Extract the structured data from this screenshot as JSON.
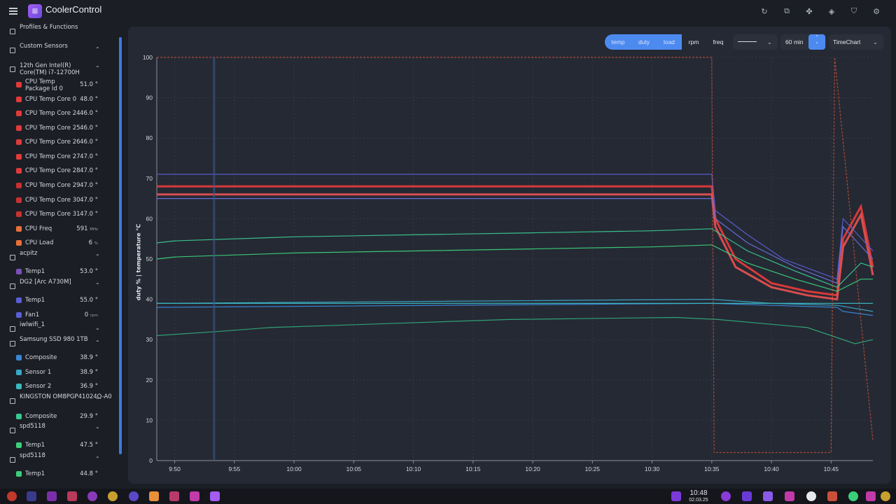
{
  "app": {
    "title": "CoolerControl",
    "logo_icon": "coolercontrol-logo"
  },
  "header_icons": [
    "refresh-icon",
    "open-external-icon",
    "fan-icon",
    "layers-icon",
    "shield-icon",
    "settings-icon"
  ],
  "sidebar": {
    "groups": [
      {
        "label": "Profiles & Functions",
        "y": 45,
        "chevron": ""
      },
      {
        "label": "Custom Sensors",
        "y": 72,
        "chevron": "up"
      },
      {
        "label": "12th Gen Intel(R) Core(TM) i7-12700H",
        "y": 99,
        "chevron": "up"
      },
      {
        "label": "acpitz",
        "y": 368,
        "chevron": "up"
      },
      {
        "label": "DG2 [Arc A730M]",
        "y": 409,
        "chevron": "up"
      },
      {
        "label": "iwlwifi_1",
        "y": 470,
        "chevron": "down"
      },
      {
        "label": "Samsung SSD 980 1TB",
        "y": 491,
        "chevron": "up"
      },
      {
        "label": "KINGSTON OM8PGP41024Q-A0",
        "y": 573,
        "chevron": "up"
      },
      {
        "label": "spd5118",
        "y": 615,
        "chevron": "up"
      },
      {
        "label": "spd5118",
        "y": 657,
        "chevron": "up"
      }
    ],
    "sensors": [
      {
        "label": "CPU Temp Package Id 0",
        "value": "51.0",
        "unit": "°",
        "color": "#e03a3a",
        "y": 121
      },
      {
        "label": "CPU Temp Core 0",
        "value": "48.0",
        "unit": "°",
        "color": "#e03a3a",
        "y": 142
      },
      {
        "label": "CPU Temp Core 24",
        "value": "46.0",
        "unit": "°",
        "color": "#e03a3a",
        "y": 162
      },
      {
        "label": "CPU Temp Core 25",
        "value": "46.0",
        "unit": "°",
        "color": "#e03a3a",
        "y": 183
      },
      {
        "label": "CPU Temp Core 26",
        "value": "46.0",
        "unit": "°",
        "color": "#e03a3a",
        "y": 203
      },
      {
        "label": "CPU Temp Core 27",
        "value": "47.0",
        "unit": "°",
        "color": "#e03a3a",
        "y": 224
      },
      {
        "label": "CPU Temp Core 28",
        "value": "47.0",
        "unit": "°",
        "color": "#e03a3a",
        "y": 244
      },
      {
        "label": "CPU Temp Core 29",
        "value": "47.0",
        "unit": "°",
        "color": "#c93030",
        "y": 265
      },
      {
        "label": "CPU Temp Core 30",
        "value": "47.0",
        "unit": "°",
        "color": "#c93030",
        "y": 286
      },
      {
        "label": "CPU Temp Core 31",
        "value": "47.0",
        "unit": "°",
        "color": "#c93030",
        "y": 306
      },
      {
        "label": "CPU Freq",
        "value": "591",
        "unit": "MHz",
        "color": "#e8703a",
        "y": 327
      },
      {
        "label": "CPU Load",
        "value": "6",
        "unit": "%",
        "color": "#e8703a",
        "y": 347
      },
      {
        "label": "Temp1",
        "value": "53.0",
        "unit": "°",
        "color": "#7a4fb8",
        "y": 388
      },
      {
        "label": "Temp1",
        "value": "55.0",
        "unit": "°",
        "color": "#5a5fd6",
        "y": 429
      },
      {
        "label": "Fan1",
        "value": "0",
        "unit": "rpm",
        "color": "#5a5fd6",
        "y": 450
      },
      {
        "label": "Composite",
        "value": "38.9",
        "unit": "°",
        "color": "#3a86d8",
        "y": 511
      },
      {
        "label": "Sensor 1",
        "value": "38.9",
        "unit": "°",
        "color": "#3aa8c8",
        "y": 532
      },
      {
        "label": "Sensor 2",
        "value": "36.9",
        "unit": "°",
        "color": "#3ab8c0",
        "y": 552
      },
      {
        "label": "Composite",
        "value": "29.9",
        "unit": "°",
        "color": "#3ac890",
        "y": 595
      },
      {
        "label": "Temp1",
        "value": "47.5",
        "unit": "°",
        "color": "#3ad07a",
        "y": 636
      },
      {
        "label": "Temp1",
        "value": "44.8",
        "unit": "°",
        "color": "#3ad07a",
        "y": 677
      }
    ]
  },
  "toolbar": {
    "filters": [
      "temp",
      "duty",
      "load",
      "rpm",
      "freq"
    ],
    "time_range": "60 min",
    "chart_type": "TimeChart"
  },
  "chart_data": {
    "type": "line",
    "ylabel": "duty %  |  temperature °C",
    "ylim": [
      0,
      100
    ],
    "yticks": [
      0,
      10,
      20,
      30,
      40,
      50,
      60,
      70,
      80,
      90,
      100
    ],
    "xticks": [
      "9:50",
      "9:55",
      "10:00",
      "10:05",
      "10:10",
      "10:15",
      "10:20",
      "10:25",
      "10:30",
      "10:35",
      "10:40",
      "10:45"
    ],
    "xlim_minutes": [
      -1.5,
      58.5
    ],
    "series": [
      {
        "color": "#e03a3a",
        "x": [
          -1.5,
          45,
          45.3,
          47,
          50,
          53,
          55.5,
          56,
          57.5,
          58.5
        ],
        "values": [
          68,
          68,
          60,
          50,
          44,
          42,
          41,
          55,
          63,
          48
        ]
      },
      {
        "color": "#e05050",
        "x": [
          -1.5,
          45,
          45.3,
          47,
          50,
          53,
          55.5,
          56,
          57.5,
          58.5
        ],
        "values": [
          66,
          66,
          58,
          48,
          43,
          41,
          40,
          53,
          61,
          46
        ]
      },
      {
        "color": "#5a5fd6",
        "x": [
          -1.5,
          45,
          45.3,
          48,
          51,
          55.5,
          56,
          58.5
        ],
        "values": [
          71,
          71,
          62,
          56,
          50,
          45,
          60,
          52
        ]
      },
      {
        "color": "#6a70e0",
        "x": [
          -1.5,
          45,
          45.3,
          48,
          52,
          55.5,
          56,
          58.5
        ],
        "values": [
          65,
          65,
          60,
          54,
          48,
          44,
          58,
          50
        ]
      },
      {
        "color": "#3ac890",
        "x": [
          -1.5,
          0,
          10,
          20,
          30,
          40,
          45,
          48,
          52,
          55.5,
          57.5,
          58.5
        ],
        "values": [
          54,
          54.5,
          55.5,
          56,
          56.5,
          57,
          57.5,
          52,
          47,
          43,
          49,
          48
        ]
      },
      {
        "color": "#3ad07a",
        "x": [
          -1.5,
          0,
          10,
          20,
          30,
          40,
          45,
          48,
          52,
          55.5,
          57.5,
          58.5
        ],
        "values": [
          50,
          50.5,
          51.5,
          52,
          52.5,
          53,
          53.5,
          49,
          45,
          42,
          45,
          45
        ]
      },
      {
        "color": "#3a86d8",
        "x": [
          -1.5,
          45,
          50,
          55.5,
          56,
          58.5
        ],
        "values": [
          38,
          39,
          38.5,
          38,
          37,
          36
        ]
      },
      {
        "color": "#3aa8c8",
        "x": [
          -1.5,
          45,
          50,
          55.5,
          58.5
        ],
        "values": [
          39,
          40,
          39,
          38.5,
          37
        ]
      },
      {
        "color": "#3ab8c0",
        "x": [
          -1.5,
          45,
          55.5,
          58.5
        ],
        "values": [
          39,
          39,
          39,
          39
        ]
      },
      {
        "color": "#2fa878",
        "x": [
          -1.5,
          3.5,
          8,
          18,
          28,
          42,
          45.5,
          53,
          57,
          58.5
        ],
        "values": [
          31,
          32,
          33,
          34,
          35,
          35.5,
          35,
          33,
          29,
          30
        ]
      },
      {
        "color": "#e05a3a",
        "x": [
          -1.5,
          45,
          45.2,
          55,
          55.3,
          58.5
        ],
        "values": [
          100,
          100,
          2,
          2,
          100,
          5
        ]
      }
    ]
  }
}
